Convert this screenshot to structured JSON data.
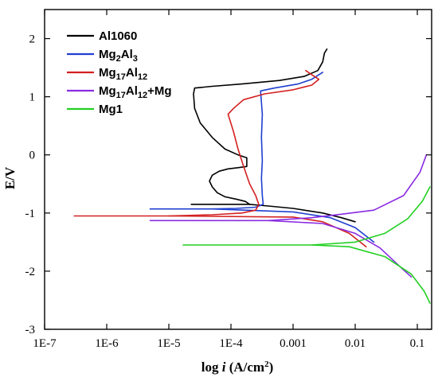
{
  "chart_data": {
    "type": "line",
    "title": "",
    "xlabel": "log i (A/cm2)",
    "ylabel": "E/V",
    "x_scale": "log",
    "xlim": [
      1e-07,
      0.17
    ],
    "ylim": [
      -3,
      2.5
    ],
    "x_ticks": [
      {
        "value": 1e-07,
        "label": "1E-7"
      },
      {
        "value": 1e-06,
        "label": "1E-6"
      },
      {
        "value": 1e-05,
        "label": "1E-5"
      },
      {
        "value": 0.0001,
        "label": "1E-4"
      },
      {
        "value": 0.001,
        "label": "0.001"
      },
      {
        "value": 0.01,
        "label": "0.01"
      },
      {
        "value": 0.1,
        "label": "0.1"
      }
    ],
    "y_ticks": [
      {
        "value": 2,
        "label": "2"
      },
      {
        "value": 1,
        "label": "1"
      },
      {
        "value": 0,
        "label": "0"
      },
      {
        "value": -1,
        "label": "-1"
      },
      {
        "value": -2,
        "label": "-2"
      },
      {
        "value": -3,
        "label": "-3"
      }
    ],
    "grid": false,
    "legend_position": "top-left",
    "series": [
      {
        "name": "Al1060",
        "color": "#000000",
        "points": [
          [
            2.3e-05,
            -0.85
          ],
          [
            0.0002,
            -0.85
          ],
          [
            0.0004,
            -0.88
          ],
          [
            0.001,
            -0.92
          ],
          [
            0.003,
            -1.0
          ],
          [
            0.006,
            -1.08
          ],
          [
            0.01,
            -1.15
          ]
        ],
        "anodic": [
          [
            0.0002,
            -0.85
          ],
          [
            0.00017,
            -0.8
          ],
          [
            0.00012,
            -0.76
          ],
          [
            8e-05,
            -0.72
          ],
          [
            6e-05,
            -0.65
          ],
          [
            5e-05,
            -0.55
          ],
          [
            4.5e-05,
            -0.45
          ],
          [
            5e-05,
            -0.35
          ],
          [
            6.5e-05,
            -0.28
          ],
          [
            9e-05,
            -0.24
          ],
          [
            0.00013,
            -0.22
          ],
          [
            0.00018,
            -0.2
          ],
          [
            0.00018,
            -0.05
          ],
          [
            0.00013,
            0.0
          ],
          [
            8e-05,
            0.1
          ],
          [
            5e-05,
            0.3
          ],
          [
            3.2e-05,
            0.55
          ],
          [
            2.6e-05,
            0.8
          ],
          [
            2.5e-05,
            1.05
          ],
          [
            2.6e-05,
            1.15
          ],
          [
            5e-05,
            1.18
          ],
          [
            0.00015,
            1.22
          ],
          [
            0.0006,
            1.28
          ],
          [
            0.0015,
            1.35
          ],
          [
            0.0025,
            1.45
          ],
          [
            0.003,
            1.6
          ],
          [
            0.0032,
            1.75
          ],
          [
            0.0035,
            1.82
          ]
        ]
      },
      {
        "name": "Mg2Al3",
        "color": "#1f3fd0",
        "points": [
          [
            5e-06,
            -0.93
          ],
          [
            5e-05,
            -0.93
          ],
          [
            0.001,
            -0.98
          ],
          [
            0.004,
            -1.08
          ],
          [
            0.01,
            -1.25
          ],
          [
            0.02,
            -1.5
          ]
        ],
        "anodic": [
          [
            5e-05,
            -0.93
          ],
          [
            0.00012,
            -0.92
          ],
          [
            0.00025,
            -0.9
          ],
          [
            0.00033,
            -0.85
          ],
          [
            0.00032,
            -0.7
          ],
          [
            0.00031,
            -0.4
          ],
          [
            0.00032,
            -0.1
          ],
          [
            0.00031,
            0.3
          ],
          [
            0.00032,
            0.7
          ],
          [
            0.0003,
            1.1
          ],
          [
            0.0005,
            1.15
          ],
          [
            0.0012,
            1.22
          ],
          [
            0.002,
            1.3
          ],
          [
            0.003,
            1.42
          ]
        ]
      },
      {
        "name": "Mg17Al12",
        "color": "#d42020",
        "points": [
          [
            3e-07,
            -1.05
          ],
          [
            1e-05,
            -1.05
          ],
          [
            0.001,
            -1.07
          ],
          [
            0.003,
            -1.15
          ],
          [
            0.008,
            -1.35
          ],
          [
            0.015,
            -1.58
          ]
        ],
        "anodic": [
          [
            1e-05,
            -1.05
          ],
          [
            5e-05,
            -1.03
          ],
          [
            0.00015,
            -1.0
          ],
          [
            0.00025,
            -0.95
          ],
          [
            0.00028,
            -0.85
          ],
          [
            0.00025,
            -0.7
          ],
          [
            0.0002,
            -0.5
          ],
          [
            0.00016,
            -0.2
          ],
          [
            0.00013,
            0.1
          ],
          [
            0.00011,
            0.4
          ],
          [
            9e-05,
            0.7
          ],
          [
            0.00011,
            0.8
          ],
          [
            0.00016,
            0.95
          ],
          [
            0.00035,
            1.05
          ],
          [
            0.001,
            1.12
          ],
          [
            0.002,
            1.2
          ],
          [
            0.0026,
            1.3
          ],
          [
            0.002,
            1.38
          ],
          [
            0.0016,
            1.45
          ]
        ]
      },
      {
        "name": "Mg17Al12+Mg",
        "color": "#8a2be2",
        "points": [
          [
            5e-06,
            -1.13
          ],
          [
            0.0004,
            -1.13
          ],
          [
            0.003,
            -1.18
          ],
          [
            0.01,
            -1.35
          ],
          [
            0.025,
            -1.6
          ],
          [
            0.05,
            -1.9
          ],
          [
            0.08,
            -2.1
          ]
        ],
        "anodic": [
          [
            0.0004,
            -1.13
          ],
          [
            0.002,
            -1.08
          ],
          [
            0.006,
            -1.02
          ],
          [
            0.02,
            -0.95
          ],
          [
            0.06,
            -0.7
          ],
          [
            0.11,
            -0.3
          ],
          [
            0.14,
            0.0
          ]
        ]
      },
      {
        "name": "Mg1",
        "color": "#22d022",
        "points": [
          [
            1.7e-05,
            -1.55
          ],
          [
            0.002,
            -1.55
          ],
          [
            0.008,
            -1.58
          ],
          [
            0.03,
            -1.75
          ],
          [
            0.08,
            -2.05
          ],
          [
            0.13,
            -2.35
          ],
          [
            0.16,
            -2.55
          ]
        ],
        "anodic": [
          [
            0.002,
            -1.55
          ],
          [
            0.01,
            -1.5
          ],
          [
            0.03,
            -1.35
          ],
          [
            0.07,
            -1.1
          ],
          [
            0.12,
            -0.8
          ],
          [
            0.16,
            -0.55
          ]
        ]
      }
    ]
  }
}
